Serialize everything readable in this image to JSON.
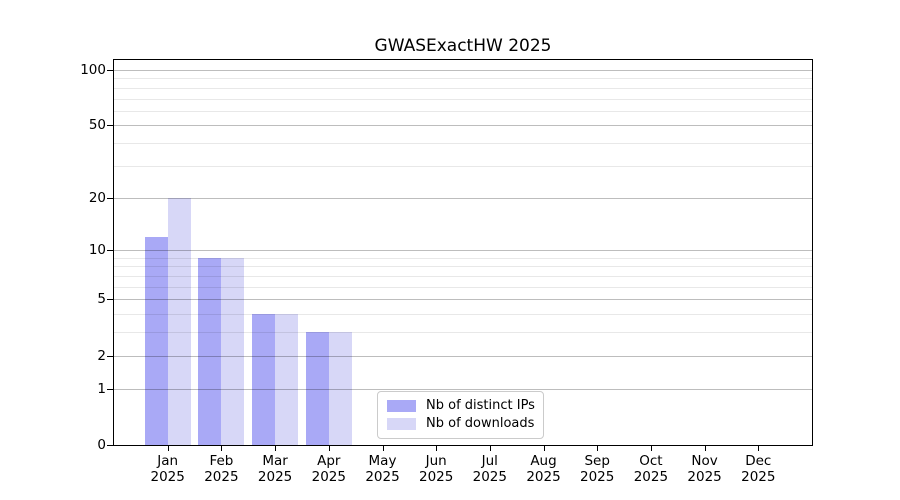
{
  "chart_data": {
    "type": "bar",
    "title": "GWASExactHW 2025",
    "categories": [
      "Jan",
      "Feb",
      "Mar",
      "Apr",
      "May",
      "Jun",
      "Jul",
      "Aug",
      "Sep",
      "Oct",
      "Nov",
      "Dec"
    ],
    "category_year": "2025",
    "series": [
      {
        "name": "Nb of distinct IPs",
        "color": "#a9a9f6",
        "values": [
          12,
          9,
          4,
          3,
          0,
          0,
          0,
          0,
          0,
          0,
          0,
          0
        ]
      },
      {
        "name": "Nb of downloads",
        "color": "#d7d7f7",
        "values": [
          20,
          9,
          4,
          3,
          0,
          0,
          0,
          0,
          0,
          0,
          0,
          0
        ]
      }
    ],
    "y_scale": "log1p",
    "y_major_ticks": [
      0,
      1,
      2,
      5,
      10,
      20,
      50,
      100
    ],
    "y_minor_ticks": [
      3,
      4,
      6,
      7,
      8,
      9,
      30,
      40,
      60,
      70,
      80,
      90
    ],
    "ylim": [
      0,
      113
    ],
    "xlabel": "",
    "ylabel": "",
    "grid": "on",
    "legend_position": "lower-center"
  }
}
